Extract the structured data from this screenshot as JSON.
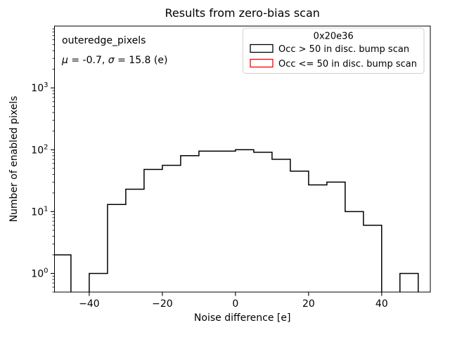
{
  "chart_data": {
    "type": "histogram-step",
    "title": "Results from zero-bias scan",
    "xlabel": "Noise difference [e]",
    "ylabel": "Number of enabled pixels",
    "yscale": "log",
    "grid": false,
    "xlim": [
      -49.5,
      53.3
    ],
    "ylim": [
      0.5,
      10000
    ],
    "x_ticks": {
      "values": [
        -40,
        -20,
        0,
        20,
        40
      ],
      "labels": [
        "−40",
        "−20",
        "0",
        "20",
        "40"
      ]
    },
    "y_ticks": {
      "values": [
        1,
        10,
        100,
        1000
      ],
      "base": "10",
      "exponents": [
        "0",
        "1",
        "2",
        "3"
      ]
    },
    "bin_edges": [
      -50,
      -45,
      -40,
      -35,
      -30,
      -25,
      -20,
      -15,
      -10,
      -5,
      0,
      5,
      10,
      15,
      20,
      25,
      30,
      35,
      40,
      45,
      50
    ],
    "series": [
      {
        "name": "Occ > 50 in disc. bump scan",
        "color": "#000000",
        "counts": [
          2,
          0,
          1,
          13,
          23,
          48,
          56,
          80,
          95,
          95,
          100,
          91,
          70,
          45,
          27,
          30,
          10,
          6,
          0,
          1
        ]
      },
      {
        "name": "Occ <= 50 in disc. bump scan",
        "color": "#ff0000",
        "counts": []
      }
    ],
    "legend_position": "upper right"
  },
  "annotation": {
    "dataset_label": "outeredge_pixels",
    "mu_symbol": "μ",
    "mu_equals": " = ",
    "mu_value": "-0.7",
    "separator": ", ",
    "sigma_symbol": "σ",
    "sigma_equals": " = ",
    "sigma_value": "15.8",
    "unit_suffix": " (e)"
  },
  "legend": {
    "title": "0x20e36",
    "entries": [
      {
        "label": "Occ > 50 in disc. bump scan",
        "color": "#000000"
      },
      {
        "label": "Occ <= 50 in disc. bump scan",
        "color": "#ff0000"
      }
    ]
  }
}
